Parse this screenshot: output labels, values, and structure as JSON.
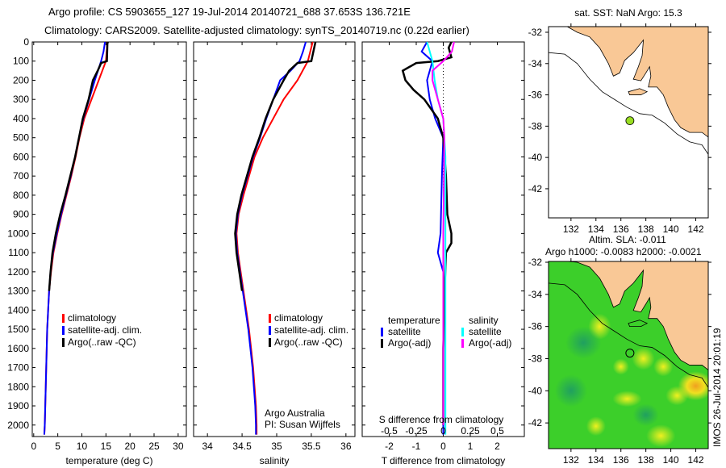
{
  "header": {
    "line1": "Argo profile: CS 5903655_127 19-Jul-2014 20140721_688 37.653S 136.721E",
    "line2": "Climatology: CARS2009. Satellite-adjusted climatology: synTS_20140719.nc (0.22d earlier)"
  },
  "footer_stamp": "IMOS 26-Jul-2014 20:01:19",
  "chart_data": [
    {
      "id": "temperature",
      "type": "line",
      "xlabel": "temperature (deg C)",
      "ylabel": "",
      "xlim": [
        -0.3,
        31.7
      ],
      "ylim": [
        0,
        2060
      ],
      "y_reversed": true,
      "xticks": [
        0,
        5,
        10,
        15,
        20,
        25,
        30
      ],
      "yticks": [
        0,
        100,
        200,
        300,
        400,
        500,
        600,
        700,
        800,
        900,
        1000,
        1100,
        1200,
        1300,
        1400,
        1500,
        1600,
        1700,
        1800,
        1900,
        2000
      ],
      "legend": [
        "climatology",
        "satellite-adj. clim.",
        "Argo(..raw -QC)"
      ],
      "legend_placement": "lower-center",
      "series": [
        {
          "name": "climatology",
          "color": "#ff0000",
          "depth": [
            0,
            100,
            200,
            300,
            400,
            500,
            600,
            700,
            800,
            900,
            1000,
            1100,
            1200,
            1300,
            1400,
            1500,
            1600,
            1700,
            1800,
            1900,
            2000,
            2050
          ],
          "values": [
            15.3,
            15.0,
            13.5,
            12.0,
            10.5,
            9.5,
            8.7,
            7.8,
            6.8,
            5.8,
            4.9,
            4.1,
            3.6,
            3.2,
            3.0,
            2.8,
            2.7,
            2.6,
            2.5,
            2.4,
            2.3,
            2.2
          ]
        },
        {
          "name": "satellite-adj. clim.",
          "color": "#0000ff",
          "depth": [
            0,
            50,
            100,
            200,
            300,
            400,
            500,
            600,
            700,
            800,
            900,
            1000,
            1100,
            1200,
            1300,
            1400,
            1500,
            1600,
            1700,
            1800,
            1900,
            2000,
            2050
          ],
          "values": [
            14.8,
            14.5,
            14.0,
            12.7,
            11.5,
            10.3,
            9.4,
            8.6,
            7.7,
            6.7,
            5.7,
            4.8,
            4.0,
            3.5,
            3.2,
            3.0,
            2.8,
            2.7,
            2.6,
            2.5,
            2.4,
            2.3,
            2.2
          ]
        },
        {
          "name": "Argo(..raw -QC)",
          "color": "#000000",
          "depth": [
            0,
            10,
            100,
            110,
            150,
            200,
            300,
            400,
            500,
            600,
            700,
            800,
            900,
            1000,
            1100,
            1200,
            1300
          ],
          "values": [
            15.4,
            15.3,
            15.2,
            14.0,
            13.3,
            12.3,
            11.4,
            10.2,
            9.4,
            8.6,
            7.6,
            6.6,
            5.5,
            4.6,
            3.9,
            3.5,
            3.2
          ]
        }
      ]
    },
    {
      "id": "salinity",
      "type": "line",
      "xlabel": "salinity",
      "xlim": [
        33.8,
        36.13
      ],
      "ylim": [
        0,
        2060
      ],
      "y_reversed": true,
      "xticks": [
        34,
        34.5,
        35,
        35.5,
        36
      ],
      "yticks": [
        0,
        100,
        200,
        300,
        400,
        500,
        600,
        700,
        800,
        900,
        1000,
        1100,
        1200,
        1300,
        1400,
        1500,
        1600,
        1700,
        1800,
        1900,
        2000
      ],
      "legend": [
        "climatology",
        "satellite-adj. clim.",
        "Argo(..raw -QC)"
      ],
      "annotations": [
        "Argo Australia",
        "PI: Susan Wijffels"
      ],
      "series": [
        {
          "name": "climatology",
          "color": "#ff0000",
          "depth": [
            0,
            100,
            200,
            300,
            400,
            500,
            600,
            700,
            800,
            900,
            1000,
            1100,
            1200,
            1300,
            1400,
            1500,
            1600,
            1700,
            1800,
            1900,
            2000,
            2050
          ],
          "values": [
            35.52,
            35.45,
            35.3,
            35.1,
            34.95,
            34.8,
            34.68,
            34.6,
            34.52,
            34.45,
            34.42,
            34.44,
            34.48,
            34.52,
            34.56,
            34.6,
            34.63,
            34.66,
            34.68,
            34.7,
            34.71,
            34.71
          ]
        },
        {
          "name": "satellite-adj. clim.",
          "color": "#0000ff",
          "depth": [
            0,
            50,
            100,
            150,
            200,
            300,
            400,
            500,
            600,
            700,
            800,
            900,
            1000,
            1100,
            1200,
            1300,
            1400,
            1500,
            1600,
            1700,
            1800,
            1900,
            2000,
            2050
          ],
          "values": [
            35.42,
            35.38,
            35.33,
            35.2,
            35.05,
            34.95,
            34.85,
            34.76,
            34.66,
            34.58,
            34.5,
            34.44,
            34.41,
            34.43,
            34.47,
            34.51,
            34.55,
            34.59,
            34.62,
            34.65,
            34.67,
            34.69,
            34.7,
            34.7
          ]
        },
        {
          "name": "Argo(..raw -QC)",
          "color": "#000000",
          "depth": [
            0,
            100,
            110,
            150,
            200,
            300,
            400,
            500,
            600,
            700,
            800,
            900,
            1000,
            1100,
            1200,
            1300
          ],
          "values": [
            35.56,
            35.5,
            35.3,
            35.18,
            35.1,
            34.95,
            34.84,
            34.75,
            34.65,
            34.57,
            34.49,
            34.43,
            34.4,
            34.42,
            34.46,
            34.5
          ]
        }
      ]
    },
    {
      "id": "difference",
      "type": "line",
      "xlabel": "T difference from climatology",
      "x2label": "S difference from climatology",
      "xlim": [
        -3,
        3
      ],
      "x2lim": [
        -0.75,
        0.75
      ],
      "ylim": [
        0,
        2060
      ],
      "y_reversed": true,
      "xticks": [
        -2,
        -1,
        0,
        1,
        2
      ],
      "x2ticks": [
        -0.5,
        -0.25,
        0,
        0.25,
        0.5
      ],
      "yticks": [
        0,
        100,
        200,
        300,
        400,
        500,
        600,
        700,
        800,
        900,
        1000,
        1100,
        1200,
        1300,
        1400,
        1500,
        1600,
        1700,
        1800,
        1900,
        2000
      ],
      "legend_headers": [
        "temperature",
        "salinity"
      ],
      "legend": [
        "satellite",
        "Argo(-adj)",
        "satellite",
        "Argo(-adj)"
      ],
      "series": [
        {
          "name": "T satellite",
          "axis": "T",
          "color": "#0000ff",
          "depth": [
            0,
            50,
            100,
            150,
            200,
            300,
            400,
            500,
            700,
            1000,
            1100,
            1200,
            1500,
            2000,
            2050
          ],
          "values": [
            -0.6,
            -0.8,
            -0.4,
            -0.5,
            -0.6,
            -0.5,
            -0.3,
            0,
            -0.05,
            -0.1,
            -0.2,
            0,
            0,
            0,
            0
          ]
        },
        {
          "name": "T Argo(-adj)",
          "axis": "T",
          "color": "#000000",
          "depth": [
            0,
            30,
            80,
            100,
            110,
            150,
            200,
            250,
            300,
            400,
            500,
            700,
            900,
            1000,
            1050,
            1100,
            1300,
            1600,
            2000
          ],
          "values": [
            0.3,
            0.2,
            0.3,
            -0.2,
            -1.0,
            -1.5,
            -1.4,
            -1.1,
            -0.7,
            -0.2,
            0,
            0.1,
            0.15,
            0.3,
            0.3,
            0.1,
            0.05,
            0,
            0
          ]
        },
        {
          "name": "S satellite",
          "axis": "S",
          "color": "#00ffff",
          "depth": [
            0,
            100,
            200,
            300,
            400,
            600,
            1000,
            1500,
            2000,
            2050
          ],
          "values": [
            -0.15,
            -0.1,
            -0.08,
            -0.05,
            0,
            0.02,
            0.02,
            0.02,
            0.02,
            0.02
          ]
        },
        {
          "name": "S Argo(-adj)",
          "axis": "S",
          "color": "#ff00ff",
          "depth": [
            0,
            50,
            100,
            150,
            200,
            300,
            400,
            500,
            1000,
            2000
          ],
          "values": [
            0.1,
            0.08,
            0.0,
            -0.1,
            -0.1,
            -0.05,
            0,
            0.01,
            0,
            0
          ]
        }
      ]
    },
    {
      "id": "sst_map",
      "type": "map",
      "title": "sat. SST: NaN Argo: 15.3",
      "xlim": [
        130.2,
        143.0
      ],
      "ylim": [
        -43.86,
        -31.64
      ],
      "xticks": [
        132,
        134,
        136,
        138,
        140,
        142
      ],
      "yticks": [
        -32,
        -34,
        -36,
        -38,
        -40,
        -42
      ],
      "argo_position": [
        136.721,
        -37.653
      ]
    },
    {
      "id": "sla_map",
      "type": "map",
      "title1": "Altim. SLA: -0.011",
      "title2": "Argo h1000: -0.0083 h2000: -0.0021",
      "xlim": [
        130.2,
        143.0
      ],
      "ylim": [
        -43.6,
        -31.95
      ],
      "xticks": [
        132,
        134,
        136,
        138,
        140,
        142
      ],
      "yticks": [
        -32,
        -34,
        -36,
        -38,
        -40,
        -42
      ],
      "argo_position": [
        136.721,
        -37.653
      ]
    }
  ]
}
